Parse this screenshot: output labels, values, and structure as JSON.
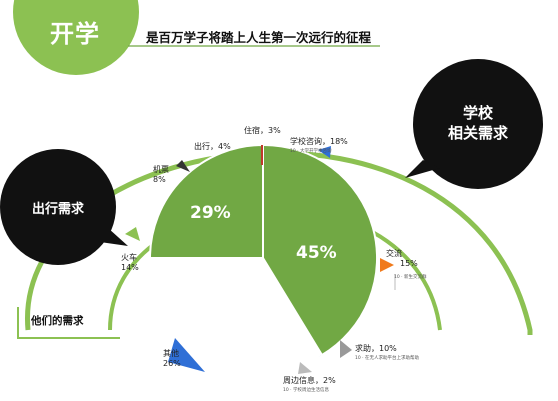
{
  "header": {
    "title": "开学",
    "subtitle": "是百万学子将踏上人生第一次远行的征程"
  },
  "bubbles": {
    "school": [
      "学校",
      "相关需求"
    ],
    "travel": "出行需求"
  },
  "section_label": "他们的需求",
  "colors": {
    "green": "#71a844",
    "light_green": "#8cc152",
    "blue": "#2f6fd6",
    "light_blue": "#9cbbe6",
    "dark": "#111111",
    "orange": "#f07a1c",
    "red": "#c0392b"
  },
  "chart_data": {
    "type": "pie",
    "title": "",
    "groups": [
      {
        "percent_label": "29%",
        "value": 29
      },
      {
        "percent_label": "45%",
        "value": 45
      }
    ],
    "slices": [
      {
        "name": "住宿",
        "value": 3,
        "label": "住宿，3%"
      },
      {
        "name": "学校咨询",
        "value": 18,
        "label": "学校咨询，18%",
        "note": "10 · 大学开学季咨询"
      },
      {
        "name": "交流",
        "value": 15,
        "label": "交流",
        "value_label": "15%",
        "note": "10 · 新生交流群"
      },
      {
        "name": "求助",
        "value": 10,
        "label": "求助，10%",
        "note": "10 · 在无人求助平台上求助帮助"
      },
      {
        "name": "周边信息",
        "value": 2,
        "label": "周边信息，2%",
        "note": "10 · 学校周边生活信息"
      },
      {
        "name": "其他",
        "value": 26,
        "label": "其他",
        "value_label": "26%"
      },
      {
        "name": "火车",
        "value": 14,
        "label": "火车",
        "value_label": "14%"
      },
      {
        "name": "机票",
        "value": 8,
        "label": "机票",
        "value_label": "8%"
      },
      {
        "name": "出行",
        "value": 4,
        "label": "出行，4%"
      }
    ]
  }
}
